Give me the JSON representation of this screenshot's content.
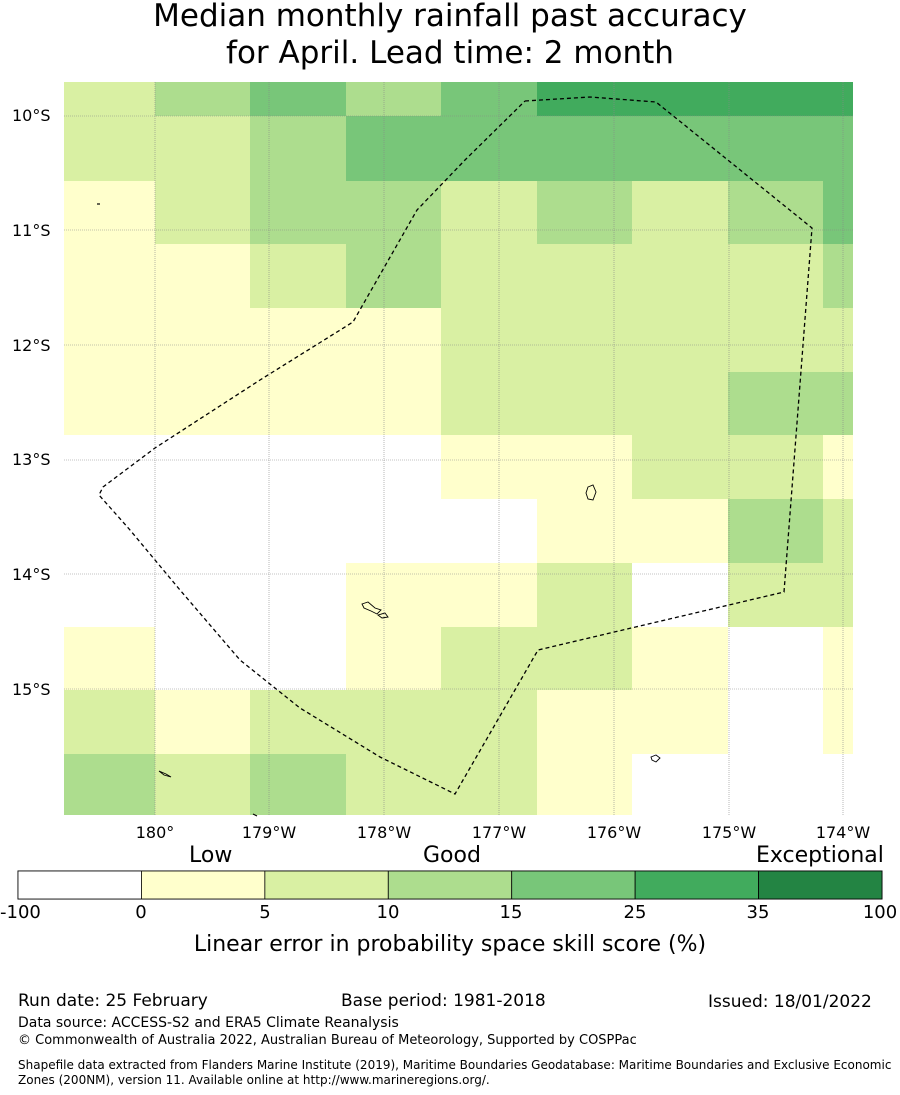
{
  "title_line1": "Median monthly rainfall past accuracy",
  "title_line2": "for April. Lead time: 2 month",
  "colors": {
    "white": "#ffffff",
    "cream": "#ffffcc",
    "pale_green": "#d9f0a3",
    "light_green": "#addd8e",
    "mid_green": "#78c679",
    "green": "#41ab5d",
    "dark_green": "#238443"
  },
  "chart_data": {
    "type": "heatmap",
    "title": "Median monthly rainfall past accuracy for April. Lead time: 2 month",
    "x_labels": [
      "180°",
      "179°W",
      "178°W",
      "177°W",
      "176°W",
      "175°W",
      "174°W"
    ],
    "y_labels": [
      "10°S",
      "11°S",
      "12°S",
      "13°S",
      "14°S",
      "15°S"
    ],
    "colorbar": {
      "label": "Linear error in probability space skill score (%)",
      "ticks": [
        "-100",
        "0",
        "5",
        "10",
        "15",
        "25",
        "35",
        "100"
      ],
      "categories": [
        "Low",
        "Good",
        "Exceptional"
      ],
      "colors": [
        "#ffffff",
        "#ffffcc",
        "#d9f0a3",
        "#addd8e",
        "#78c679",
        "#41ab5d",
        "#238443"
      ]
    }
  },
  "footer": {
    "run_date": "Run date: 25 February",
    "base_period": "Base period: 1981-2018",
    "issued": "Issued: 18/01/2022",
    "data_source": "Data source: ACCESS-S2 and ERA5 Climate Reanalysis",
    "copyright": "© Commonwealth of Australia 2022, Australian Bureau of Meteorology, Supported by COSPPac",
    "shapefile": "Shapefile data extracted from Flanders Marine Institute (2019), Maritime Boundaries Geodatabase: Maritime Boundaries and Exclusive Economic Zones (200NM), version 11. Available online at http://www.marineregions.org/."
  }
}
